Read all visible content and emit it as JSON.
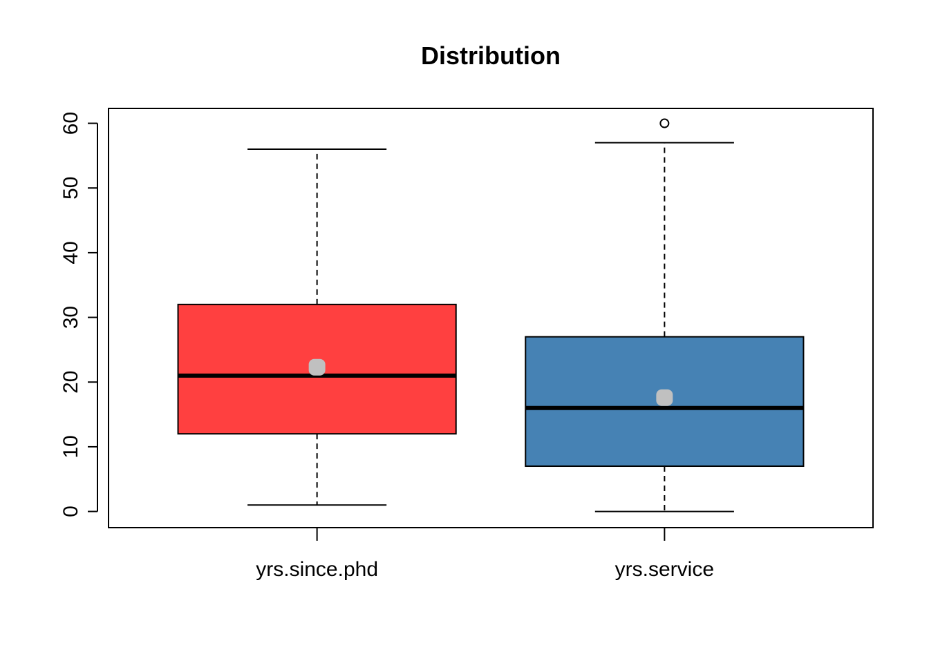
{
  "chart_data": {
    "type": "box",
    "title": "Distribution",
    "xlabel": "",
    "ylabel": "",
    "ylim": [
      -2.5,
      62.3
    ],
    "yticks": [
      0,
      10,
      20,
      30,
      40,
      50,
      60
    ],
    "grid": false,
    "categories": [
      "yrs.since.phd",
      "yrs.service"
    ],
    "boxes": [
      {
        "category": "yrs.since.phd",
        "whisker_low": 1,
        "q1": 12,
        "median": 21,
        "q3": 32,
        "whisker_high": 56,
        "mean": 22.3,
        "outliers": [],
        "color": "#FF4040"
      },
      {
        "category": "yrs.service",
        "whisker_low": 0,
        "q1": 7,
        "median": 16,
        "q3": 27,
        "whisker_high": 57,
        "mean": 17.6,
        "outliers": [
          60
        ],
        "color": "#4682B4"
      }
    ],
    "mean_marker_color": "#C0C0C0"
  }
}
